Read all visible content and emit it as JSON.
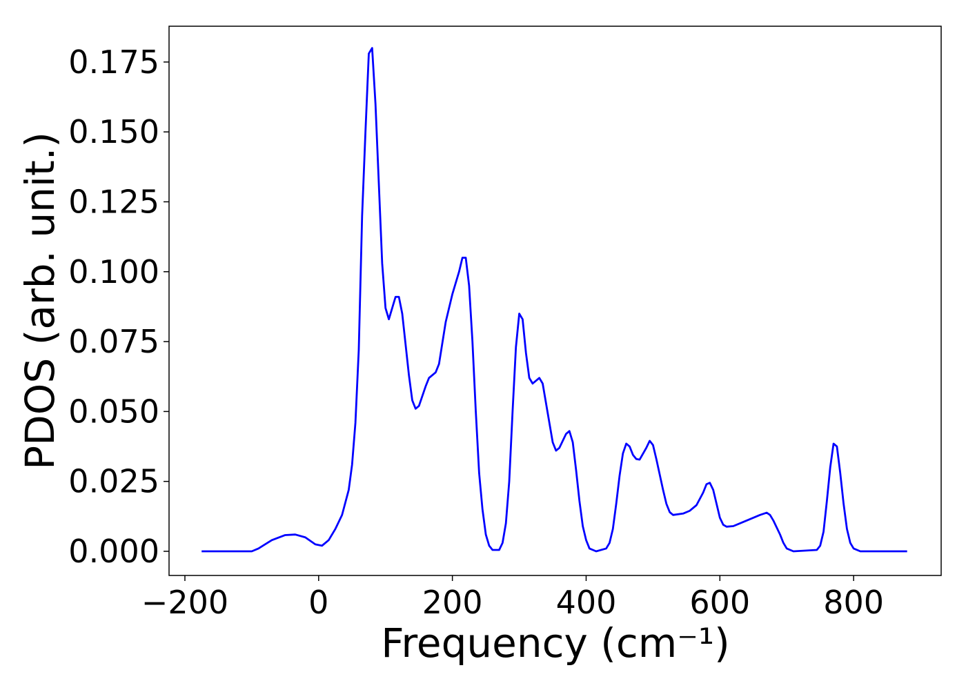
{
  "chart_data": {
    "type": "line",
    "xlabel": "Frequency (cm⁻¹)",
    "ylabel": "PDOS (arb. unit.)",
    "xlim": [
      -223.7,
      930.9
    ],
    "ylim": [
      -0.00864,
      0.1878
    ],
    "xticks": [
      {
        "value": -200,
        "label": "−200"
      },
      0,
      200,
      400,
      600,
      800
    ],
    "yticks": [
      {
        "value": 0,
        "label": "0.000"
      },
      {
        "value": 0.025,
        "label": "0.025"
      },
      {
        "value": 0.05,
        "label": "0.050"
      },
      {
        "value": 0.075,
        "label": "0.075"
      },
      {
        "value": 0.1,
        "label": "0.100"
      },
      {
        "value": 0.125,
        "label": "0.125"
      },
      {
        "value": 0.15,
        "label": "0.150"
      },
      {
        "value": 0.175,
        "label": "0.175"
      }
    ],
    "x": [
      -175,
      -100,
      -90,
      -70,
      -50,
      -35,
      -20,
      -5,
      5,
      15,
      25,
      35,
      45,
      50,
      55,
      60,
      65,
      70,
      75,
      80,
      85,
      95,
      100,
      105,
      115,
      120,
      125,
      135,
      140,
      145,
      150,
      160,
      165,
      175,
      180,
      190,
      200,
      210,
      215,
      220,
      225,
      230,
      235,
      240,
      245,
      250,
      255,
      260,
      270,
      275,
      280,
      285,
      290,
      295,
      300,
      305,
      310,
      315,
      320,
      325,
      330,
      335,
      340,
      350,
      355,
      360,
      370,
      375,
      380,
      385,
      390,
      395,
      400,
      405,
      415,
      430,
      435,
      440,
      445,
      450,
      455,
      460,
      465,
      470,
      475,
      480,
      490,
      495,
      500,
      505,
      515,
      520,
      525,
      530,
      545,
      555,
      565,
      575,
      580,
      585,
      590,
      595,
      600,
      605,
      610,
      620,
      640,
      660,
      670,
      675,
      680,
      690,
      695,
      700,
      710,
      745,
      750,
      755,
      760,
      765,
      770,
      775,
      780,
      785,
      790,
      795,
      800,
      810,
      880
    ],
    "series": [
      {
        "color": "#0000ff",
        "values": [
          0,
          0,
          0.001,
          0.004,
          0.0058,
          0.006,
          0.005,
          0.0025,
          0.002,
          0.004,
          0.008,
          0.013,
          0.022,
          0.031,
          0.046,
          0.072,
          0.12,
          0.15,
          0.178,
          0.18,
          0.16,
          0.103,
          0.087,
          0.083,
          0.091,
          0.091,
          0.085,
          0.063,
          0.054,
          0.051,
          0.052,
          0.059,
          0.062,
          0.064,
          0.067,
          0.082,
          0.092,
          0.1,
          0.105,
          0.105,
          0.095,
          0.075,
          0.05,
          0.028,
          0.015,
          0.006,
          0.002,
          0.0005,
          0.0005,
          0.003,
          0.01,
          0.025,
          0.05,
          0.073,
          0.085,
          0.083,
          0.071,
          0.062,
          0.06,
          0.061,
          0.062,
          0.06,
          0.053,
          0.039,
          0.036,
          0.037,
          0.042,
          0.043,
          0.039,
          0.029,
          0.018,
          0.009,
          0.004,
          0.001,
          0,
          0.001,
          0.003,
          0.008,
          0.017,
          0.027,
          0.035,
          0.0385,
          0.0375,
          0.0345,
          0.033,
          0.0328,
          0.037,
          0.0395,
          0.038,
          0.033,
          0.022,
          0.017,
          0.014,
          0.013,
          0.0135,
          0.0145,
          0.0165,
          0.021,
          0.024,
          0.0245,
          0.022,
          0.017,
          0.012,
          0.0095,
          0.0088,
          0.009,
          0.011,
          0.013,
          0.0138,
          0.013,
          0.011,
          0.006,
          0.003,
          0.001,
          0,
          0.0005,
          0.002,
          0.007,
          0.018,
          0.03,
          0.0385,
          0.0375,
          0.028,
          0.017,
          0.008,
          0.003,
          0.001,
          0,
          0
        ]
      }
    ]
  }
}
